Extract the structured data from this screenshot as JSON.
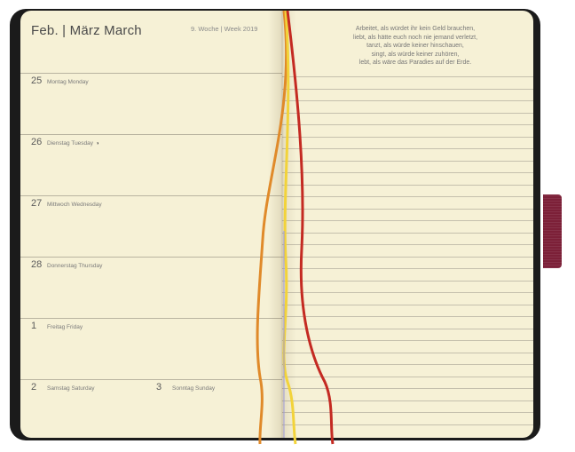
{
  "header": {
    "month": "Feb. | März March",
    "week": "9. Woche | Week 2019"
  },
  "days": [
    {
      "num": "25",
      "name": "Montag Monday",
      "moon": false
    },
    {
      "num": "26",
      "name": "Dienstag Tuesday",
      "moon": true
    },
    {
      "num": "27",
      "name": "Mittwoch Wednesday",
      "moon": false
    },
    {
      "num": "28",
      "name": "Donnerstag Thursday",
      "moon": false
    },
    {
      "num": "1",
      "name": "Freitag Friday",
      "moon": false
    },
    {
      "num": "2",
      "name": "Samstag Saturday",
      "moon": false
    },
    {
      "num": "3",
      "name": "Sonntag Sunday",
      "moon": false
    }
  ],
  "moon_symbol": "◑",
  "quote": [
    "Arbeitet, als würdet ihr kein Geld brauchen,",
    "liebt, als hätte euch noch nie jemand verletzt,",
    "tanzt, als würde keiner hinschauen,",
    "singt, als würde keiner zuhören,",
    "lebt, als wäre das Paradies auf der Erde."
  ],
  "colors": {
    "cover": "#1b1b1b",
    "paper": "#f6f1d6",
    "elastic_band": "#7c2038",
    "ribbon_orange": "#e08a2a",
    "ribbon_yellow": "#f2d33a",
    "ribbon_red": "#c42a22"
  }
}
